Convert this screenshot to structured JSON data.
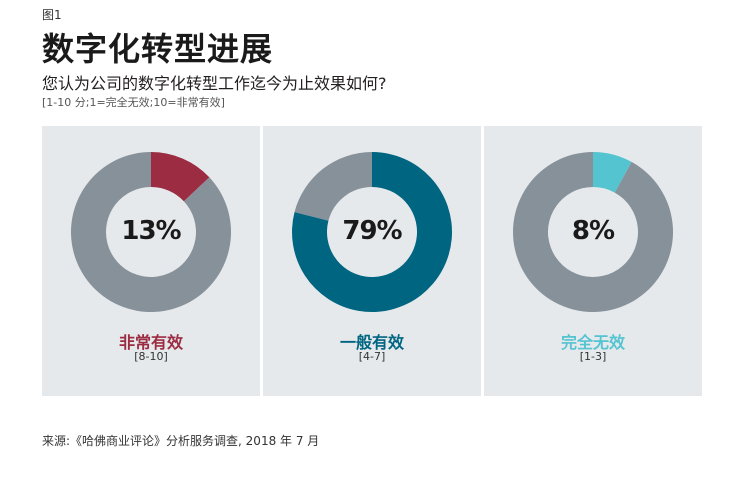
{
  "figure_label": "图1",
  "title": "数字化转型进展",
  "subtitle": "您认为公司的数字化转型工作迄今为止效果如何?",
  "scale_note": "[1-10 分;1=完全无效;10=非常有效]",
  "source": "来源:《哈佛商业评论》分析服务调查, 2018 年 7 月",
  "colors": {
    "remainder": "#87919a",
    "panel_bg": "#e6e9ec"
  },
  "chart_data": [
    {
      "type": "pie",
      "category": "非常有效",
      "range": "[8-10]",
      "value": 13,
      "label": "13%",
      "color": "#9b2c42"
    },
    {
      "type": "pie",
      "category": "一般有效",
      "range": "[4-7]",
      "value": 79,
      "label": "79%",
      "color": "#006581"
    },
    {
      "type": "pie",
      "category": "完全无效",
      "range": "[1-3]",
      "value": 8,
      "label": "8%",
      "color": "#54c4d1"
    }
  ]
}
